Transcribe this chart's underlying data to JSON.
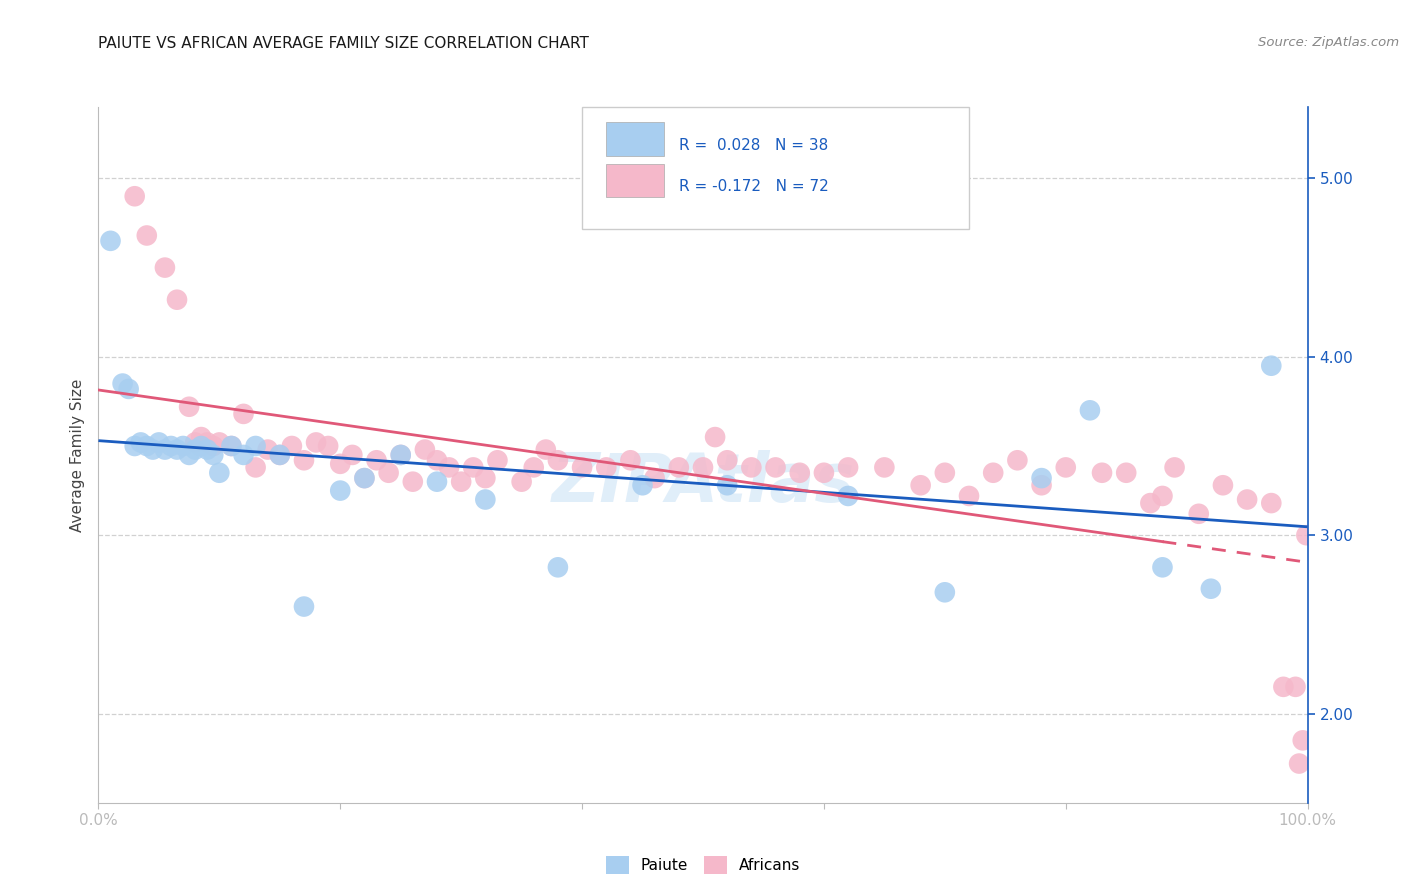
{
  "title": "PAIUTE VS AFRICAN AVERAGE FAMILY SIZE CORRELATION CHART",
  "source": "Source: ZipAtlas.com",
  "ylabel": "Average Family Size",
  "yticks_right": [
    2.0,
    3.0,
    4.0,
    5.0
  ],
  "xlim": [
    0.0,
    100.0
  ],
  "ylim": [
    1.5,
    5.4
  ],
  "paiute_R": 0.028,
  "paiute_N": 38,
  "african_R": -0.172,
  "african_N": 72,
  "paiute_color": "#a8cef0",
  "african_color": "#f5b8ca",
  "paiute_line_color": "#1a5cbf",
  "african_line_color": "#e05878",
  "legend_label1": "Paiute",
  "legend_label2": "Africans",
  "paiute_x": [
    1.0,
    2.0,
    2.5,
    3.0,
    3.5,
    4.0,
    4.5,
    5.0,
    5.5,
    6.0,
    6.5,
    7.0,
    7.5,
    8.0,
    8.5,
    9.0,
    9.5,
    10.0,
    11.0,
    12.0,
    13.0,
    15.0,
    17.0,
    20.0,
    22.0,
    25.0,
    28.0,
    32.0,
    38.0,
    45.0,
    52.0,
    62.0,
    70.0,
    78.0,
    82.0,
    88.0,
    92.0,
    97.0
  ],
  "paiute_y": [
    4.65,
    3.85,
    3.82,
    3.5,
    3.52,
    3.5,
    3.48,
    3.52,
    3.48,
    3.5,
    3.48,
    3.5,
    3.45,
    3.48,
    3.5,
    3.48,
    3.45,
    3.35,
    3.5,
    3.45,
    3.5,
    3.45,
    2.6,
    3.25,
    3.32,
    3.45,
    3.3,
    3.2,
    2.82,
    3.28,
    3.28,
    3.22,
    2.68,
    3.32,
    3.7,
    2.82,
    2.7,
    3.95
  ],
  "african_x": [
    3.0,
    4.0,
    5.5,
    6.5,
    7.5,
    8.0,
    8.5,
    9.0,
    9.5,
    10.0,
    11.0,
    12.0,
    13.0,
    14.0,
    15.0,
    16.0,
    17.0,
    18.0,
    19.0,
    20.0,
    21.0,
    22.0,
    23.0,
    24.0,
    25.0,
    26.0,
    27.0,
    28.0,
    29.0,
    30.0,
    31.0,
    32.0,
    33.0,
    35.0,
    36.0,
    37.0,
    38.0,
    40.0,
    42.0,
    44.0,
    46.0,
    48.0,
    50.0,
    51.0,
    52.0,
    54.0,
    56.0,
    58.0,
    60.0,
    62.0,
    65.0,
    68.0,
    70.0,
    72.0,
    74.0,
    76.0,
    78.0,
    80.0,
    83.0,
    85.0,
    87.0,
    88.0,
    89.0,
    91.0,
    93.0,
    95.0,
    97.0,
    98.0,
    99.0,
    99.3,
    99.6,
    99.9
  ],
  "african_y": [
    4.9,
    4.68,
    4.5,
    4.32,
    3.72,
    3.52,
    3.55,
    3.52,
    3.5,
    3.52,
    3.5,
    3.68,
    3.38,
    3.48,
    3.45,
    3.5,
    3.42,
    3.52,
    3.5,
    3.4,
    3.45,
    3.32,
    3.42,
    3.35,
    3.45,
    3.3,
    3.48,
    3.42,
    3.38,
    3.3,
    3.38,
    3.32,
    3.42,
    3.3,
    3.38,
    3.48,
    3.42,
    3.38,
    3.38,
    3.42,
    3.32,
    3.38,
    3.38,
    3.55,
    3.42,
    3.38,
    3.38,
    3.35,
    3.35,
    3.38,
    3.38,
    3.28,
    3.35,
    3.22,
    3.35,
    3.42,
    3.28,
    3.38,
    3.35,
    3.35,
    3.18,
    3.22,
    3.38,
    3.12,
    3.28,
    3.2,
    3.18,
    2.15,
    2.15,
    1.72,
    1.85,
    3.0
  ],
  "background_color": "#ffffff",
  "grid_color": "#cccccc",
  "watermark_text": "ZIPAtlas",
  "watermark_color": "#c8e0f5"
}
